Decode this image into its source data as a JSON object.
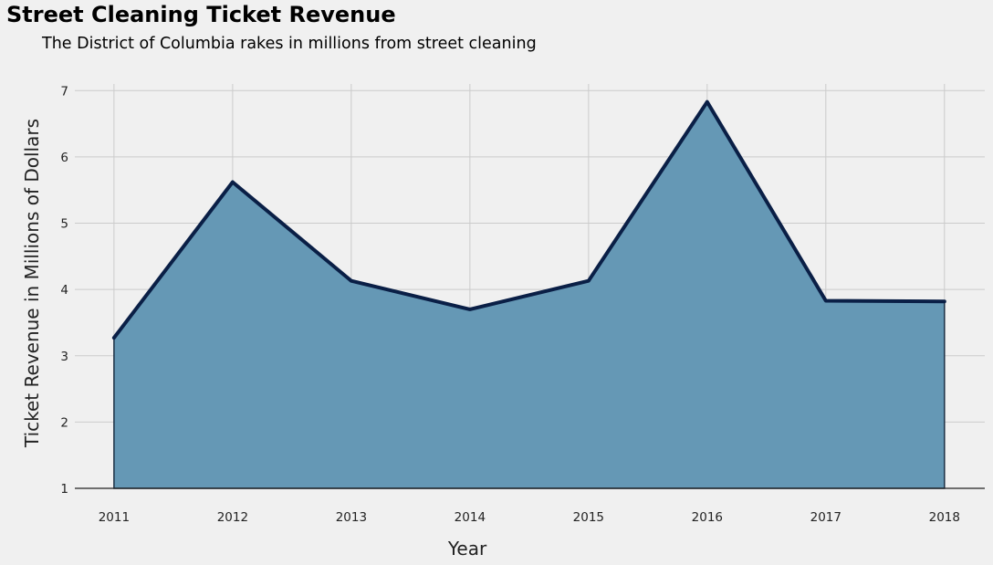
{
  "chart_data": {
    "type": "area",
    "title": "Street Cleaning Ticket Revenue",
    "subtitle": "The District of Columbia rakes in millions from street cleaning",
    "xlabel": "Year",
    "ylabel": "Ticket Revenue in Millions of Dollars",
    "x": [
      2011,
      2012,
      2013,
      2014,
      2015,
      2016,
      2017,
      2018
    ],
    "values": [
      3.27,
      5.62,
      4.13,
      3.7,
      4.13,
      6.83,
      3.83,
      3.82
    ],
    "xlim": [
      2010.67,
      2018.34
    ],
    "ylim": [
      1,
      7.1
    ],
    "yticks": [
      1,
      2,
      3,
      4,
      5,
      6,
      7
    ],
    "xticks": [
      2011,
      2012,
      2013,
      2014,
      2015,
      2016,
      2017,
      2018
    ],
    "grid": true,
    "colors": {
      "fill": "#6598b5",
      "line": "#0a1f46",
      "grid": "#cbcbcb",
      "background": "#f0f0f0"
    }
  }
}
